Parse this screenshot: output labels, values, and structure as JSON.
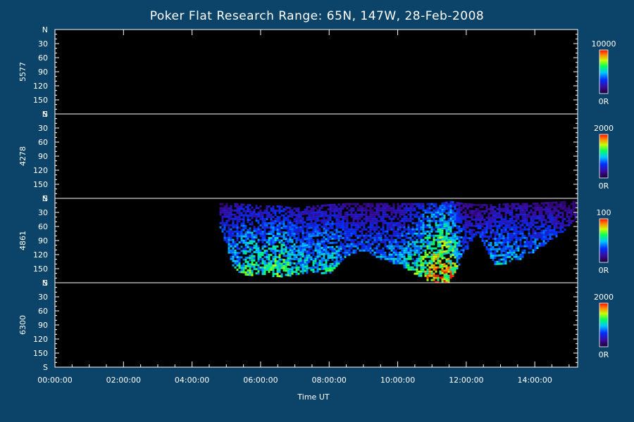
{
  "chart_data": {
    "type": "heatmap",
    "title": "Poker Flat Research Range: 65N, 147W, 28-Feb-2008",
    "xlabel": "Time UT",
    "x_ticks": [
      "00:00:00",
      "02:00:00",
      "04:00:00",
      "06:00:00",
      "08:00:00",
      "10:00:00",
      "12:00:00",
      "14:00:00"
    ],
    "x_range_hours": [
      0,
      15.25
    ],
    "y_ticks": [
      "N",
      "30",
      "60",
      "90",
      "120",
      "150",
      "S"
    ],
    "y_range_deg": [
      0,
      180
    ],
    "panels": [
      {
        "wavelength": "5577",
        "colorbar_max": "10000",
        "colorbar_min": "0R",
        "activity": []
      },
      {
        "wavelength": "4278",
        "colorbar_max": "2000",
        "colorbar_min": "0R",
        "activity": []
      },
      {
        "wavelength": "4861",
        "colorbar_max": "100",
        "colorbar_min": "0R",
        "activity": [
          {
            "t": 4.8,
            "lo": 10,
            "hi": 60,
            "i": 0.35
          },
          {
            "t": 5.2,
            "lo": 10,
            "hi": 150,
            "i": 0.55
          },
          {
            "t": 5.6,
            "lo": 12,
            "hi": 165,
            "i": 0.7
          },
          {
            "t": 6.0,
            "lo": 15,
            "hi": 160,
            "i": 0.6
          },
          {
            "t": 6.5,
            "lo": 15,
            "hi": 168,
            "i": 0.75
          },
          {
            "t": 7.0,
            "lo": 20,
            "hi": 160,
            "i": 0.6
          },
          {
            "t": 7.5,
            "lo": 15,
            "hi": 155,
            "i": 0.55
          },
          {
            "t": 8.0,
            "lo": 12,
            "hi": 160,
            "i": 0.6
          },
          {
            "t": 8.5,
            "lo": 10,
            "hi": 120,
            "i": 0.45
          },
          {
            "t": 9.0,
            "lo": 10,
            "hi": 110,
            "i": 0.4
          },
          {
            "t": 9.5,
            "lo": 10,
            "hi": 130,
            "i": 0.45
          },
          {
            "t": 10.0,
            "lo": 10,
            "hi": 140,
            "i": 0.5
          },
          {
            "t": 10.5,
            "lo": 10,
            "hi": 160,
            "i": 0.65
          },
          {
            "t": 10.9,
            "lo": 10,
            "hi": 175,
            "i": 0.9
          },
          {
            "t": 11.2,
            "lo": 10,
            "hi": 178,
            "i": 1.0
          },
          {
            "t": 11.5,
            "lo": 5,
            "hi": 178,
            "i": 0.95
          },
          {
            "t": 11.9,
            "lo": 10,
            "hi": 120,
            "i": 0.4
          },
          {
            "t": 12.3,
            "lo": 12,
            "hi": 70,
            "i": 0.3
          },
          {
            "t": 12.8,
            "lo": 12,
            "hi": 140,
            "i": 0.5
          },
          {
            "t": 13.3,
            "lo": 10,
            "hi": 135,
            "i": 0.5
          },
          {
            "t": 13.8,
            "lo": 10,
            "hi": 120,
            "i": 0.45
          },
          {
            "t": 14.3,
            "lo": 8,
            "hi": 95,
            "i": 0.4
          },
          {
            "t": 14.8,
            "lo": 6,
            "hi": 70,
            "i": 0.3
          },
          {
            "t": 15.2,
            "lo": 5,
            "hi": 40,
            "i": 0.2
          }
        ]
      },
      {
        "wavelength": "6300",
        "colorbar_max": "2000",
        "colorbar_min": "0R",
        "activity": []
      }
    ]
  }
}
